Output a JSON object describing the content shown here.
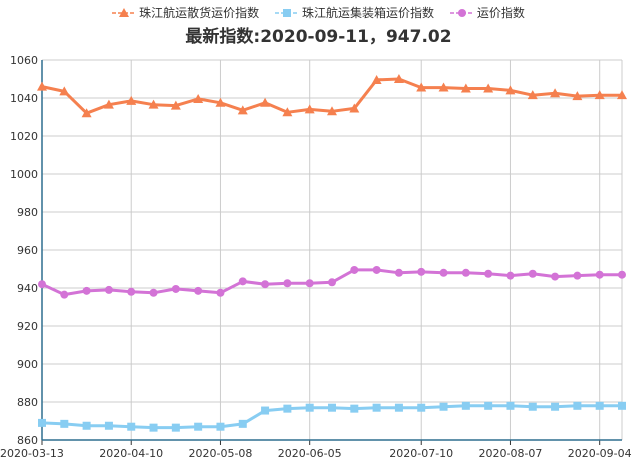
{
  "legend": {
    "series_0": "珠江航运散货运价指数",
    "series_1": "珠江航运集装箱运价指数",
    "series_2": "运价指数"
  },
  "subtitle": "最新指数:2020-09-11，947.02",
  "chart_data": {
    "type": "line",
    "title": "",
    "subtitle": "最新指数:2020-09-11，947.02",
    "xlabel": "",
    "ylabel": "",
    "x": [
      "2020-03-13",
      "2020-03-20",
      "2020-03-27",
      "2020-04-03",
      "2020-04-10",
      "2020-04-17",
      "2020-04-24",
      "2020-05-01",
      "2020-05-08",
      "2020-05-15",
      "2020-05-22",
      "2020-05-29",
      "2020-06-05",
      "2020-06-12",
      "2020-06-19",
      "2020-06-26",
      "2020-07-03",
      "2020-07-10",
      "2020-07-17",
      "2020-07-24",
      "2020-07-31",
      "2020-08-07",
      "2020-08-14",
      "2020-08-21",
      "2020-08-28",
      "2020-09-04",
      "2020-09-11"
    ],
    "x_tick_labels": [
      "2020-03-13",
      "2020-04-10",
      "2020-05-08",
      "2020-06-05",
      "2020-07-10",
      "2020-08-07",
      "2020-09-04"
    ],
    "ylim": [
      860,
      1060
    ],
    "y_ticks": [
      860,
      880,
      900,
      920,
      940,
      960,
      980,
      1000,
      1020,
      1040,
      1060
    ],
    "grid": true,
    "legend_position": "top",
    "series": [
      {
        "name": "珠江航运散货运价指数",
        "color": "#f5804f",
        "marker": "triangle",
        "values": [
          1046,
          1043.5,
          1032,
          1036.5,
          1038.5,
          1036.5,
          1036,
          1039.5,
          1037.5,
          1033.5,
          1037.5,
          1032.5,
          1034,
          1033,
          1034.5,
          1049.5,
          1050,
          1045.5,
          1045.5,
          1045,
          1045,
          1044,
          1041.5,
          1042.5,
          1041,
          1041.5,
          1041.5
        ]
      },
      {
        "name": "珠江航运集装箱运价指数",
        "color": "#88cdf2",
        "marker": "square",
        "values": [
          869,
          868.5,
          867.5,
          867.5,
          867,
          866.5,
          866.5,
          867,
          867,
          868.5,
          875.5,
          876.5,
          877,
          877,
          876.5,
          877,
          877,
          877,
          877.5,
          878,
          878,
          878,
          877.5,
          877.5,
          878,
          878,
          878
        ]
      },
      {
        "name": "运价指数",
        "color": "#d373d6",
        "marker": "circle",
        "values": [
          942,
          936.5,
          938.5,
          939,
          938,
          937.5,
          939.5,
          938.5,
          937.5,
          943.5,
          942,
          942.5,
          942.5,
          943,
          949.5,
          949.5,
          948,
          948.5,
          948,
          948,
          947.5,
          946.5,
          947.5,
          946,
          946.5,
          947,
          947
        ]
      }
    ]
  }
}
